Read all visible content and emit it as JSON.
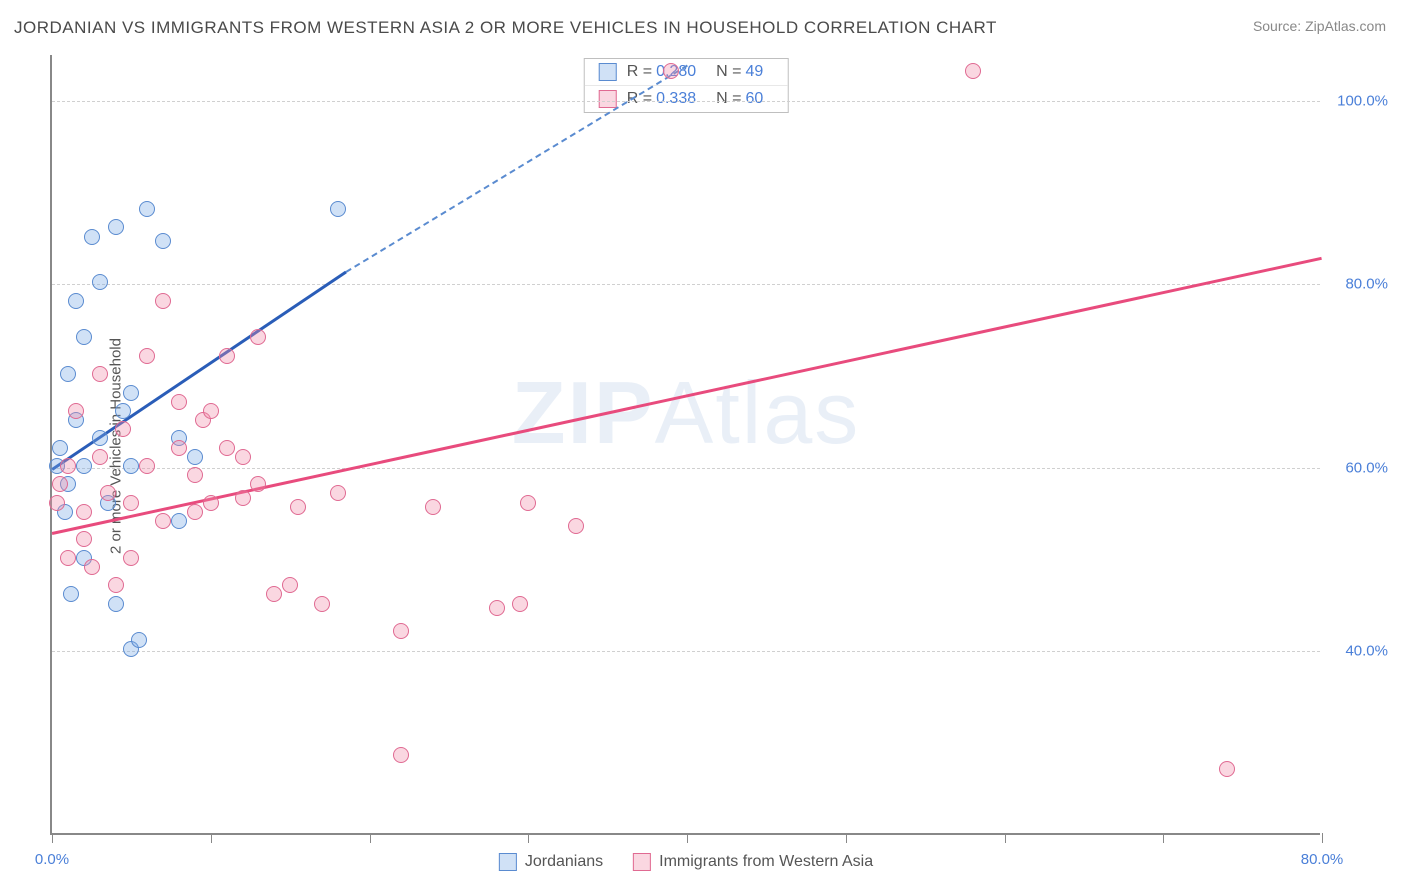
{
  "title": "JORDANIAN VS IMMIGRANTS FROM WESTERN ASIA 2 OR MORE VEHICLES IN HOUSEHOLD CORRELATION CHART",
  "source": "Source: ZipAtlas.com",
  "y_axis_label": "2 or more Vehicles in Household",
  "watermark_zip": "ZIP",
  "watermark_atlas": "Atlas",
  "chart": {
    "type": "scatter",
    "background_color": "#ffffff",
    "grid_color": "#d0d0d0",
    "axis_color": "#888888",
    "tick_label_color": "#4a7fd8",
    "label_fontsize": 15,
    "title_fontsize": 17,
    "xlim": [
      0,
      80
    ],
    "ylim": [
      20,
      105
    ],
    "y_gridlines": [
      40,
      60,
      80,
      100
    ],
    "y_tick_labels": [
      "40.0%",
      "60.0%",
      "80.0%",
      "100.0%"
    ],
    "x_ticks": [
      0,
      10,
      20,
      30,
      40,
      50,
      60,
      70,
      80
    ],
    "x_tick_labels": {
      "0": "0.0%",
      "80": "80.0%"
    },
    "marker_radius": 8,
    "series": [
      {
        "name": "Jordanians",
        "fill": "rgba(120,170,230,0.35)",
        "stroke": "#5a8bd0",
        "line_color": "#2a5db8",
        "R": "0.280",
        "N": "49",
        "fit": {
          "x0": 0,
          "y0": 60,
          "x1": 18.5,
          "y1": 81.5
        },
        "fit_ext": {
          "x0": 18.5,
          "y0": 81.5,
          "x1": 40,
          "y1": 104
        },
        "points": [
          [
            0.3,
            60
          ],
          [
            0.5,
            62
          ],
          [
            0.8,
            55
          ],
          [
            1,
            70
          ],
          [
            1,
            58
          ],
          [
            1.2,
            46
          ],
          [
            1.5,
            78
          ],
          [
            1.5,
            65
          ],
          [
            2,
            60
          ],
          [
            2,
            50
          ],
          [
            2,
            74
          ],
          [
            2.5,
            85
          ],
          [
            3,
            80
          ],
          [
            3,
            63
          ],
          [
            3.5,
            56
          ],
          [
            4,
            86
          ],
          [
            4,
            45
          ],
          [
            4.5,
            66
          ],
          [
            5,
            60
          ],
          [
            5,
            40
          ],
          [
            5,
            68
          ],
          [
            5.5,
            41
          ],
          [
            6,
            88
          ],
          [
            7,
            84.5
          ],
          [
            8,
            54
          ],
          [
            8,
            63
          ],
          [
            9,
            61
          ],
          [
            18,
            88
          ]
        ]
      },
      {
        "name": "Immigrants from Western Asia",
        "fill": "rgba(240,140,170,0.35)",
        "stroke": "#e06a92",
        "line_color": "#e84b7d",
        "R": "0.338",
        "N": "60",
        "fit": {
          "x0": 0,
          "y0": 53,
          "x1": 80,
          "y1": 83
        },
        "points": [
          [
            0.3,
            56
          ],
          [
            0.5,
            58
          ],
          [
            1,
            50
          ],
          [
            1,
            60
          ],
          [
            1.5,
            66
          ],
          [
            2,
            52
          ],
          [
            2,
            55
          ],
          [
            2.5,
            49
          ],
          [
            3,
            61
          ],
          [
            3,
            70
          ],
          [
            3.5,
            57
          ],
          [
            4,
            47
          ],
          [
            4.5,
            64
          ],
          [
            5,
            56
          ],
          [
            5,
            50
          ],
          [
            6,
            72
          ],
          [
            6,
            60
          ],
          [
            7,
            78
          ],
          [
            7,
            54
          ],
          [
            8,
            62
          ],
          [
            8,
            67
          ],
          [
            9,
            55
          ],
          [
            9,
            59
          ],
          [
            9.5,
            65
          ],
          [
            10,
            66
          ],
          [
            10,
            56
          ],
          [
            11,
            72
          ],
          [
            11,
            62
          ],
          [
            12,
            56.5
          ],
          [
            12,
            61
          ],
          [
            13,
            74
          ],
          [
            13,
            58
          ],
          [
            14,
            46
          ],
          [
            15,
            47
          ],
          [
            15.5,
            55.5
          ],
          [
            17,
            45
          ],
          [
            18,
            57
          ],
          [
            22,
            42
          ],
          [
            22,
            28.5
          ],
          [
            24,
            55.5
          ],
          [
            28,
            44.5
          ],
          [
            29.5,
            45
          ],
          [
            30,
            56
          ],
          [
            33,
            53.5
          ],
          [
            39,
            103
          ],
          [
            58,
            103
          ],
          [
            74,
            27
          ]
        ]
      }
    ]
  }
}
